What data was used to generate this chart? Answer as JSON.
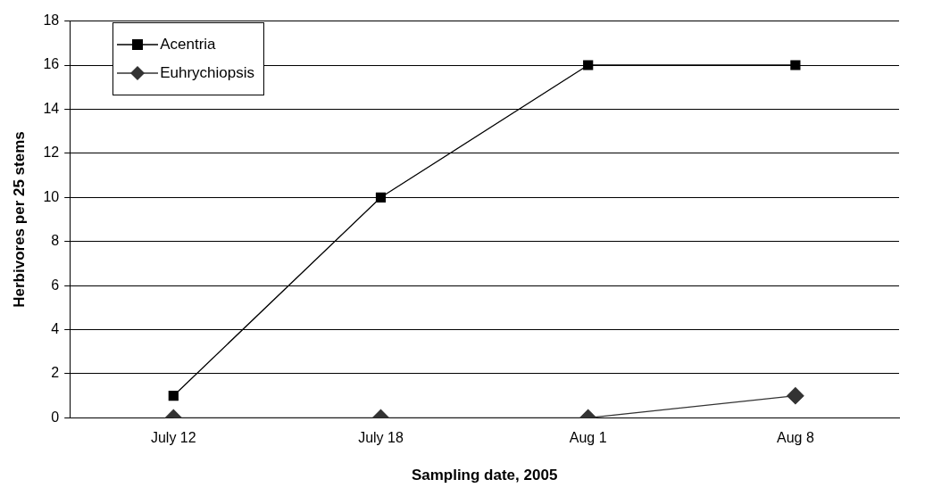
{
  "chart_data": {
    "type": "line",
    "xlabel": "Sampling date, 2005",
    "ylabel": "Herbivores per 25 stems",
    "categories": [
      "July 12",
      "July 18",
      "Aug 1",
      "Aug 8"
    ],
    "series": [
      {
        "name": "Acentria",
        "color": "#000000",
        "marker": "square",
        "values": [
          1,
          10,
          16,
          16
        ]
      },
      {
        "name": "Euhrychiopsis",
        "color": "#333333",
        "marker": "diamond",
        "values": [
          0,
          0,
          0,
          1
        ]
      }
    ],
    "ylim": [
      0,
      18
    ],
    "yticks": [
      0,
      2,
      4,
      6,
      8,
      10,
      12,
      14,
      16,
      18
    ],
    "grid": "y",
    "legend": "top left",
    "line_style": "solid"
  }
}
